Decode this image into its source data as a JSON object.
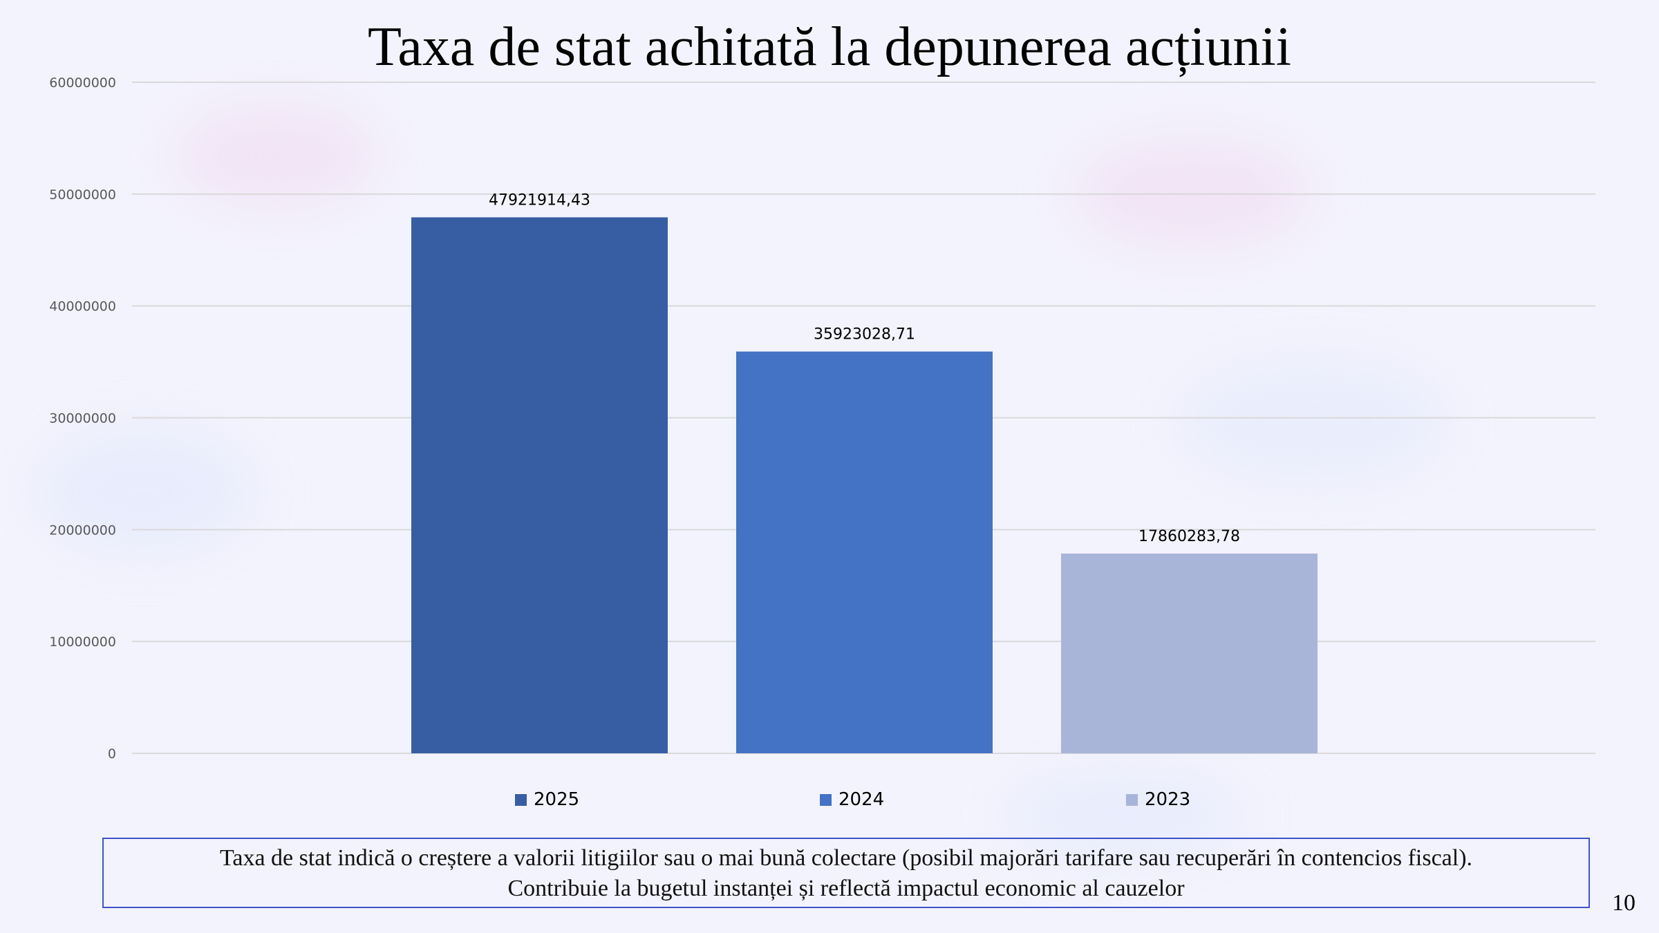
{
  "chart_data": {
    "type": "bar",
    "title": "Taxa de stat achitată la depunerea acțiunii",
    "categories": [
      "2025",
      "2024",
      "2023"
    ],
    "values": [
      47921914.43,
      35923028.71,
      17860283.78
    ],
    "data_labels": [
      "47921914,43",
      "35923028,71",
      "17860283,78"
    ],
    "colors": [
      "#375ea2",
      "#4472c4",
      "#a8b5d9"
    ],
    "ylim": [
      0,
      60000000
    ],
    "yticks": [
      "0",
      "10000000",
      "20000000",
      "30000000",
      "40000000",
      "50000000",
      "60000000"
    ],
    "grid": true,
    "legend_position": "bottom",
    "xlabel": "",
    "ylabel": ""
  },
  "note": {
    "line1": "Taxa de stat indică o creștere a valorii litigiilor sau o mai bună colectare (posibil majorări tarifare sau recuperări în contencios fiscal).",
    "line2": "Contribuie la bugetul instanței și reflectă impactul economic al cauzelor"
  },
  "page_number": "10"
}
